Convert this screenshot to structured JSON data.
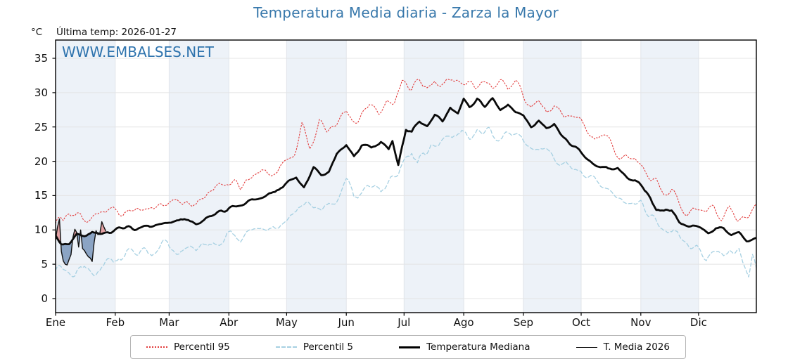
{
  "header": {
    "title": "Temperatura Media diaria - Zarza la Mayor",
    "units_label": "°C",
    "last_temp_label": "Última temp: 2026-01-27",
    "watermark": "WWW.EMBALSES.NET",
    "title_color": "#3878ab"
  },
  "legend": {
    "position": "bottom",
    "items": [
      {
        "label": "Percentil 95",
        "color": "#e23b3b",
        "style": "dotted"
      },
      {
        "label": "Percentil 5",
        "color": "#a6d0e2",
        "style": "dashed"
      },
      {
        "label": "Temperatura Mediana",
        "color": "#000000",
        "style": "thick"
      },
      {
        "label": "T. Media 2026",
        "color": "#000000",
        "style": "thin"
      }
    ]
  },
  "chart_data": {
    "type": "line",
    "title": "Temperatura Media diaria - Zarza la Mayor",
    "xlabel": "",
    "ylabel": "°C",
    "ylim": [
      -2,
      37.7
    ],
    "yticks": [
      0,
      5,
      10,
      15,
      20,
      25,
      30,
      35
    ],
    "x_months": [
      "Ene",
      "Feb",
      "Mar",
      "Abr",
      "May",
      "Jun",
      "Jul",
      "Ago",
      "Sep",
      "Oct",
      "Nov",
      "Dic"
    ],
    "month_start_days": [
      1,
      32,
      60,
      91,
      121,
      152,
      182,
      213,
      244,
      274,
      305,
      335
    ],
    "days_in_year": 365,
    "shaded_month_indices": [
      0,
      2,
      4,
      6,
      8,
      10
    ],
    "band_color": "#edf2f8",
    "grid_color": "#e4e4e4",
    "vgrid_color": "#e0e4ea",
    "fill_above": "rgba(217,95,95,0.55)",
    "fill_below": "rgba(73,111,161,0.6)",
    "grid": true,
    "legend_position": "bottom",
    "series": [
      {
        "id": "p95",
        "name": "Percentil 95",
        "color": "#e23b3b",
        "dash": "dotted",
        "width": 1.1,
        "jitter": 0.85,
        "seed": 101,
        "anchors": [
          [
            1,
            12.2
          ],
          [
            5,
            11.2
          ],
          [
            10,
            12.6
          ],
          [
            15,
            11.9
          ],
          [
            20,
            12.5
          ],
          [
            25,
            13.3
          ],
          [
            32,
            12.5
          ],
          [
            40,
            13.7
          ],
          [
            46,
            12.9
          ],
          [
            52,
            13.3
          ],
          [
            59,
            13.6
          ],
          [
            66,
            14.5
          ],
          [
            74,
            13.9
          ],
          [
            82,
            15.2
          ],
          [
            90,
            17.1
          ],
          [
            97,
            16.3
          ],
          [
            105,
            18.4
          ],
          [
            113,
            18.1
          ],
          [
            120,
            19.9
          ],
          [
            125,
            21.5
          ],
          [
            129,
            24.7
          ],
          [
            133,
            22.4
          ],
          [
            138,
            25.3
          ],
          [
            142,
            23.4
          ],
          [
            146,
            24.6
          ],
          [
            152,
            27.4
          ],
          [
            158,
            26.1
          ],
          [
            164,
            28.8
          ],
          [
            169,
            27.6
          ],
          [
            173,
            28.9
          ],
          [
            177,
            28.4
          ],
          [
            181,
            31.2
          ],
          [
            186,
            29.9
          ],
          [
            190,
            31.5
          ],
          [
            194,
            30.4
          ],
          [
            198,
            31.9
          ],
          [
            203,
            30.9
          ],
          [
            207,
            32.1
          ],
          [
            211,
            31.1
          ],
          [
            215,
            32.0
          ],
          [
            219,
            31.0
          ],
          [
            223,
            32.0
          ],
          [
            228,
            31.2
          ],
          [
            232,
            31.9
          ],
          [
            236,
            30.7
          ],
          [
            240,
            31.3
          ],
          [
            244,
            29.5
          ],
          [
            248,
            28.1
          ],
          [
            252,
            29.2
          ],
          [
            256,
            27.4
          ],
          [
            260,
            28.7
          ],
          [
            265,
            26.4
          ],
          [
            270,
            26.9
          ],
          [
            274,
            25.2
          ],
          [
            278,
            24.0
          ],
          [
            283,
            23.2
          ],
          [
            288,
            22.5
          ],
          [
            293,
            21.3
          ],
          [
            298,
            20.4
          ],
          [
            302,
            20.1
          ],
          [
            305,
            19.4
          ],
          [
            309,
            18.3
          ],
          [
            313,
            17.0
          ],
          [
            317,
            15.4
          ],
          [
            321,
            16.2
          ],
          [
            325,
            14.4
          ],
          [
            329,
            13.2
          ],
          [
            335,
            13.0
          ],
          [
            339,
            12.3
          ],
          [
            343,
            13.4
          ],
          [
            347,
            12.2
          ],
          [
            351,
            13.2
          ],
          [
            355,
            11.9
          ],
          [
            359,
            12.4
          ],
          [
            362,
            13.0
          ],
          [
            365,
            12.5
          ]
        ]
      },
      {
        "id": "p5",
        "name": "Percentil 5",
        "color": "#a6d0e2",
        "dash": "dashed",
        "width": 1.3,
        "jitter": 0.8,
        "seed": 202,
        "anchors": [
          [
            1,
            5.3
          ],
          [
            6,
            4.5
          ],
          [
            11,
            3.8
          ],
          [
            16,
            4.9
          ],
          [
            21,
            3.6
          ],
          [
            27,
            5.0
          ],
          [
            32,
            5.5
          ],
          [
            38,
            6.4
          ],
          [
            45,
            6.9
          ],
          [
            52,
            6.2
          ],
          [
            59,
            8.0
          ],
          [
            64,
            5.9
          ],
          [
            70,
            6.7
          ],
          [
            76,
            7.4
          ],
          [
            82,
            7.2
          ],
          [
            90,
            9.7
          ],
          [
            97,
            9.0
          ],
          [
            105,
            10.5
          ],
          [
            113,
            10.1
          ],
          [
            120,
            12.0
          ],
          [
            128,
            12.9
          ],
          [
            135,
            13.5
          ],
          [
            142,
            12.6
          ],
          [
            148,
            14.9
          ],
          [
            152,
            16.2
          ],
          [
            156,
            14.8
          ],
          [
            163,
            16.6
          ],
          [
            170,
            15.6
          ],
          [
            175,
            17.2
          ],
          [
            179,
            18.1
          ],
          [
            183,
            20.9
          ],
          [
            186,
            21.4
          ],
          [
            189,
            19.7
          ],
          [
            193,
            21.0
          ],
          [
            196,
            22.7
          ],
          [
            200,
            21.8
          ],
          [
            204,
            22.4
          ],
          [
            208,
            23.3
          ],
          [
            212,
            24.2
          ],
          [
            216,
            23.4
          ],
          [
            220,
            24.3
          ],
          [
            224,
            24.5
          ],
          [
            228,
            23.7
          ],
          [
            232,
            24.0
          ],
          [
            236,
            23.5
          ],
          [
            240,
            23.9
          ],
          [
            244,
            23.1
          ],
          [
            248,
            22.0
          ],
          [
            252,
            21.7
          ],
          [
            256,
            22.4
          ],
          [
            260,
            21.0
          ],
          [
            265,
            20.2
          ],
          [
            270,
            19.0
          ],
          [
            274,
            18.8
          ],
          [
            278,
            17.3
          ],
          [
            283,
            16.8
          ],
          [
            288,
            15.7
          ],
          [
            293,
            14.4
          ],
          [
            298,
            14.7
          ],
          [
            302,
            14.1
          ],
          [
            305,
            13.9
          ],
          [
            309,
            12.6
          ],
          [
            313,
            11.9
          ],
          [
            317,
            10.4
          ],
          [
            321,
            9.8
          ],
          [
            325,
            8.8
          ],
          [
            329,
            7.8
          ],
          [
            335,
            6.9
          ],
          [
            339,
            6.3
          ],
          [
            343,
            7.1
          ],
          [
            347,
            6.2
          ],
          [
            350,
            5.6
          ],
          [
            353,
            6.1
          ],
          [
            356,
            7.3
          ],
          [
            361,
            4.0
          ],
          [
            363,
            6.9
          ],
          [
            365,
            5.5
          ]
        ]
      },
      {
        "id": "median",
        "name": "Temperatura Mediana",
        "color": "#0a0a0a",
        "dash": "solid",
        "width": 2.8,
        "jitter": 0.3,
        "seed": 303,
        "anchors": [
          [
            1,
            8.7
          ],
          [
            4,
            7.9
          ],
          [
            8,
            8.1
          ],
          [
            12,
            9.4
          ],
          [
            16,
            9.1
          ],
          [
            20,
            9.7
          ],
          [
            24,
            9.3
          ],
          [
            28,
            9.8
          ],
          [
            32,
            9.9
          ],
          [
            38,
            10.4
          ],
          [
            45,
            10.1
          ],
          [
            52,
            10.6
          ],
          [
            59,
            10.7
          ],
          [
            66,
            11.5
          ],
          [
            74,
            11.0
          ],
          [
            82,
            12.0
          ],
          [
            90,
            12.9
          ],
          [
            97,
            13.8
          ],
          [
            105,
            14.6
          ],
          [
            113,
            15.3
          ],
          [
            120,
            16.4
          ],
          [
            126,
            17.6
          ],
          [
            130,
            16.1
          ],
          [
            135,
            18.9
          ],
          [
            139,
            18.2
          ],
          [
            143,
            18.6
          ],
          [
            147,
            20.9
          ],
          [
            152,
            22.3
          ],
          [
            156,
            20.6
          ],
          [
            160,
            22.4
          ],
          [
            165,
            21.6
          ],
          [
            170,
            22.7
          ],
          [
            174,
            21.5
          ],
          [
            176,
            22.8
          ],
          [
            179,
            19.3
          ],
          [
            183,
            24.8
          ],
          [
            186,
            24.1
          ],
          [
            190,
            25.9
          ],
          [
            194,
            25.1
          ],
          [
            198,
            26.5
          ],
          [
            202,
            25.6
          ],
          [
            206,
            27.9
          ],
          [
            210,
            27.1
          ],
          [
            213,
            29.0
          ],
          [
            216,
            27.9
          ],
          [
            220,
            28.9
          ],
          [
            224,
            28.2
          ],
          [
            228,
            29.1
          ],
          [
            232,
            27.7
          ],
          [
            236,
            28.4
          ],
          [
            240,
            27.2
          ],
          [
            244,
            26.7
          ],
          [
            248,
            25.2
          ],
          [
            252,
            25.9
          ],
          [
            256,
            24.6
          ],
          [
            260,
            25.1
          ],
          [
            265,
            23.4
          ],
          [
            270,
            22.3
          ],
          [
            274,
            21.1
          ],
          [
            278,
            20.3
          ],
          [
            283,
            19.4
          ],
          [
            288,
            18.7
          ],
          [
            293,
            19.3
          ],
          [
            298,
            17.7
          ],
          [
            302,
            17.3
          ],
          [
            305,
            16.6
          ],
          [
            309,
            15.2
          ],
          [
            313,
            13.2
          ],
          [
            317,
            12.5
          ],
          [
            321,
            12.9
          ],
          [
            325,
            11.4
          ],
          [
            330,
            10.9
          ],
          [
            335,
            10.7
          ],
          [
            340,
            9.7
          ],
          [
            344,
            10.3
          ],
          [
            348,
            9.9
          ],
          [
            352,
            9.0
          ],
          [
            356,
            9.4
          ],
          [
            360,
            8.6
          ],
          [
            365,
            8.6
          ]
        ]
      },
      {
        "id": "t2026",
        "name": "T. Media 2026",
        "color": "#111111",
        "dash": "solid",
        "width": 1.4,
        "start_day": 1,
        "daily_values": [
          8.6,
          10.4,
          11.6,
          6.9,
          5.5,
          5.0,
          4.9,
          5.7,
          6.4,
          8.9,
          10.1,
          9.6,
          7.5,
          10.0,
          7.3,
          7.0,
          6.5,
          6.1,
          5.9,
          5.4,
          8.1,
          9.9,
          9.3,
          9.5,
          11.2,
          10.5,
          9.9
        ]
      }
    ]
  }
}
